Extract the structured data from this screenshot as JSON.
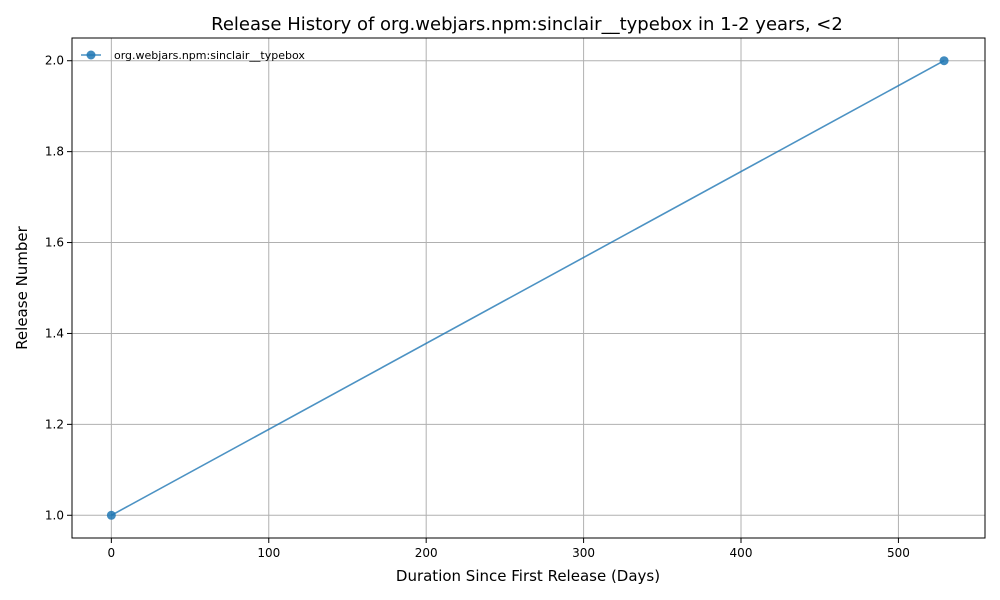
{
  "chart_data": {
    "type": "line",
    "title": "Release History of org.webjars.npm:sinclair__typebox in 1-2 years, <2",
    "xlabel": "Duration Since First Release (Days)",
    "ylabel": "Release Number",
    "xlim": [
      -25,
      555
    ],
    "ylim": [
      0.95,
      2.05
    ],
    "xticks": [
      0,
      100,
      200,
      300,
      400,
      500
    ],
    "yticks": [
      1.0,
      1.2,
      1.4,
      1.6,
      1.8,
      2.0
    ],
    "xtick_labels": [
      "0",
      "100",
      "200",
      "300",
      "400",
      "500"
    ],
    "ytick_labels": [
      "1.0",
      "1.2",
      "1.4",
      "1.6",
      "1.8",
      "2.0"
    ],
    "grid": true,
    "legend_position": "top-left",
    "series": [
      {
        "name": "org.webjars.npm:sinclair__typebox",
        "color": "#1f77b4",
        "marker": "circle",
        "x": [
          0,
          529
        ],
        "y": [
          1,
          2
        ]
      }
    ]
  }
}
